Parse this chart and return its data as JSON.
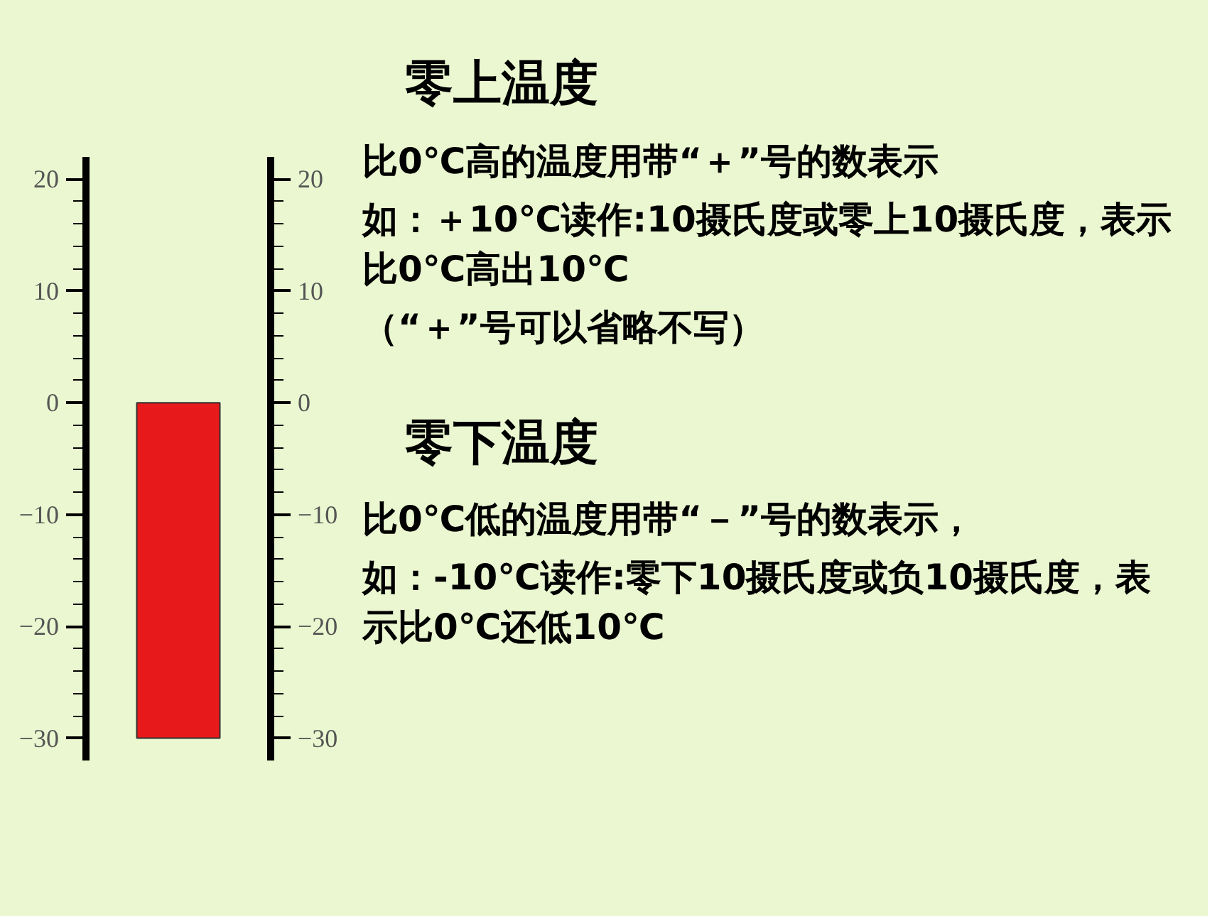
{
  "chart_data": {
    "type": "bar",
    "categories": [
      null
    ],
    "base": [
      -30
    ],
    "values": [
      30
    ],
    "color": "#e8191a",
    "ylim": [
      -32,
      22
    ],
    "yticks": [
      -30,
      -20,
      -10,
      0,
      10,
      20
    ],
    "y2lim": [
      -32,
      22
    ],
    "y2ticks": [
      -30,
      -20,
      -10,
      0,
      10,
      20
    ],
    "tick_labels": "y",
    "grid": false,
    "annotations": [
      "零上温度",
      "比0℃高的温度用带“＋”号的数表示",
      "如：＋10℃读作:10摄氏度或零上10摄氏度，表示比0℃高出10℃",
      "（“＋”号可以省略不写）",
      "零下温度",
      "比0℃低的温度用带“－”号的数表示，",
      "如：-10℃读作:零下10摄氏度或负10摄氏度，表示比0℃还低10℃"
    ]
  }
}
